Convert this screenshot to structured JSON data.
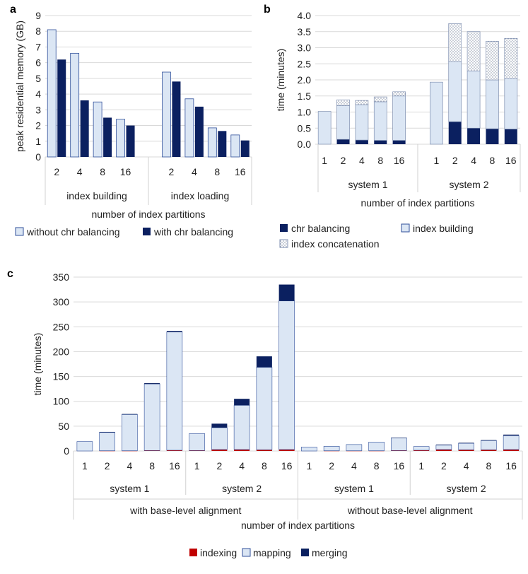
{
  "colors": {
    "navy": "#0b2060",
    "lightblue": "#dbe6f4",
    "outline": "#2f4f9a",
    "red": "#c00000"
  },
  "chart_data": [
    {
      "panel_label": "a",
      "type": "bar",
      "ylabel": "peak residential memory (GB)",
      "xlabel": "number of index partitions",
      "ylim": [
        0,
        9
      ],
      "yticks": [
        "0",
        "1",
        "2",
        "3",
        "4",
        "5",
        "6",
        "7",
        "8",
        "9"
      ],
      "grid": true,
      "legend_position": "bottom",
      "groups": [
        {
          "name": "index building",
          "categories": [
            "2",
            "4",
            "8",
            "16"
          ]
        },
        {
          "name": "index loading",
          "categories": [
            "2",
            "4",
            "8",
            "16"
          ]
        }
      ],
      "series": [
        {
          "name": "without chr balancing",
          "values": [
            8.1,
            6.6,
            3.5,
            2.4,
            5.4,
            3.7,
            1.85,
            1.4
          ]
        },
        {
          "name": "with chr balancing",
          "values": [
            6.2,
            3.6,
            2.5,
            2.0,
            4.8,
            3.2,
            1.65,
            1.05
          ]
        }
      ]
    },
    {
      "panel_label": "b",
      "type": "bar",
      "stacked": true,
      "ylabel": "time (minutes)",
      "xlabel": "number of index partitions",
      "ylim": [
        0,
        4
      ],
      "yticks": [
        "0.0",
        "0.5",
        "1.0",
        "1.5",
        "2.0",
        "2.5",
        "3.0",
        "3.5",
        "4.0"
      ],
      "grid": true,
      "legend_position": "bottom",
      "groups": [
        {
          "name": "system 1",
          "categories": [
            "1",
            "2",
            "4",
            "8",
            "16"
          ]
        },
        {
          "name": "system 2",
          "categories": [
            "1",
            "2",
            "4",
            "8",
            "16"
          ]
        }
      ],
      "series": [
        {
          "name": "chr balancing",
          "values": [
            0,
            0.15,
            0.13,
            0.12,
            0.12,
            0,
            0.7,
            0.5,
            0.48,
            0.47
          ]
        },
        {
          "name": "index building",
          "values": [
            1.02,
            1.05,
            1.1,
            1.2,
            1.38,
            1.93,
            1.87,
            1.78,
            1.52,
            1.57
          ]
        },
        {
          "name": "index concatenation",
          "values": [
            0,
            0.18,
            0.13,
            0.15,
            0.13,
            0,
            1.18,
            1.22,
            1.2,
            1.25
          ]
        }
      ]
    },
    {
      "panel_label": "c",
      "type": "bar",
      "stacked": true,
      "ylabel": "time  (minutes)",
      "xlabel": "number of index partitions",
      "ylim": [
        0,
        350
      ],
      "yticks": [
        "0",
        "50",
        "100",
        "150",
        "200",
        "250",
        "300",
        "350"
      ],
      "grid": true,
      "legend_position": "bottom",
      "outer_groups": [
        {
          "name": "with base-level alignment",
          "groups": [
            "system 1",
            "system 2"
          ]
        },
        {
          "name": "without base-level alignment",
          "groups": [
            "system 1",
            "system 2"
          ]
        }
      ],
      "groups": [
        {
          "name": "system 1",
          "categories": [
            "1",
            "2",
            "4",
            "8",
            "16"
          ]
        },
        {
          "name": "system 2",
          "categories": [
            "1",
            "2",
            "4",
            "8",
            "16"
          ]
        },
        {
          "name": "system 1",
          "categories": [
            "1",
            "2",
            "4",
            "8",
            "16"
          ]
        },
        {
          "name": "system 2",
          "categories": [
            "1",
            "2",
            "4",
            "8",
            "16"
          ]
        }
      ],
      "series": [
        {
          "name": "indexing",
          "values": [
            0,
            0.5,
            0.5,
            1,
            1.5,
            1,
            3,
            3,
            2.5,
            3,
            0,
            0.5,
            0.5,
            0.5,
            1,
            1.5,
            3,
            2.5,
            2.5,
            3
          ]
        },
        {
          "name": "mapping",
          "values": [
            19,
            37,
            73,
            134,
            238,
            34,
            44,
            89,
            166,
            299,
            8,
            9,
            12.5,
            17.5,
            25.5,
            7.5,
            9,
            13,
            18.5,
            28
          ]
        },
        {
          "name": "merging",
          "values": [
            0,
            1,
            1,
            1.5,
            2,
            0,
            8,
            13,
            22,
            33,
            0,
            0,
            0,
            0,
            0.5,
            0,
            1,
            1,
            1,
            2
          ]
        }
      ]
    }
  ]
}
